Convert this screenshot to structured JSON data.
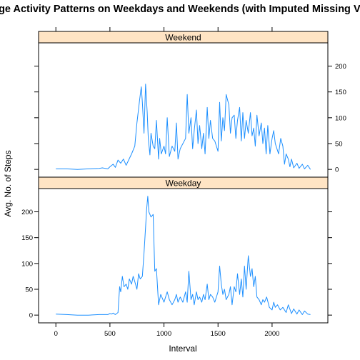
{
  "chart_data": {
    "type": "line",
    "title": "Average Activity Patterns on Weekdays and Weekends (with Imputed Missing Values)",
    "xlabel": "Interval",
    "ylabel": "Avg. No. of Steps",
    "xlim": [
      -160,
      2516
    ],
    "x_ticks": [
      0,
      500,
      1000,
      1500,
      2000
    ],
    "y_ticks": [
      0,
      50,
      100,
      150,
      200
    ],
    "line_color": "#1e90ff",
    "strip_color": "#ffe4c4",
    "grid": false,
    "panels": [
      {
        "name": "Weekend",
        "ylim": [
          -15,
          245
        ],
        "x": [
          0,
          100,
          200,
          300,
          400,
          430,
          480,
          500,
          530,
          550,
          575,
          600,
          625,
          650,
          700,
          730,
          750,
          775,
          790,
          800,
          815,
          830,
          845,
          855,
          870,
          880,
          900,
          915,
          930,
          950,
          960,
          975,
          1000,
          1015,
          1030,
          1050,
          1075,
          1100,
          1115,
          1130,
          1150,
          1200,
          1215,
          1230,
          1250,
          1265,
          1280,
          1300,
          1315,
          1330,
          1350,
          1365,
          1380,
          1400,
          1415,
          1430,
          1450,
          1470,
          1500,
          1515,
          1530,
          1545,
          1560,
          1575,
          1600,
          1615,
          1630,
          1650,
          1665,
          1680,
          1700,
          1715,
          1730,
          1745,
          1760,
          1780,
          1800,
          1815,
          1830,
          1845,
          1860,
          1880,
          1900,
          1915,
          1930,
          1945,
          1960,
          1980,
          2000,
          2015,
          2030,
          2045,
          2060,
          2080,
          2100,
          2115,
          2130,
          2150,
          2165,
          2180,
          2200,
          2230,
          2250,
          2280,
          2300,
          2330,
          2355
        ],
        "y": [
          1,
          1,
          0,
          1,
          2,
          3,
          1,
          5,
          10,
          4,
          18,
          12,
          20,
          8,
          30,
          45,
          90,
          135,
          160,
          130,
          70,
          165,
          110,
          60,
          28,
          70,
          45,
          40,
          95,
          20,
          60,
          30,
          45,
          30,
          100,
          25,
          45,
          35,
          90,
          20,
          40,
          60,
          145,
          70,
          100,
          40,
          75,
          115,
          50,
          85,
          40,
          70,
          30,
          120,
          60,
          95,
          60,
          55,
          35,
          130,
          55,
          100,
          75,
          145,
          125,
          70,
          100,
          105,
          60,
          95,
          120,
          55,
          110,
          60,
          95,
          70,
          110,
          65,
          80,
          45,
          105,
          65,
          90,
          50,
          80,
          30,
          85,
          30,
          60,
          75,
          50,
          40,
          30,
          60,
          45,
          10,
          30,
          20,
          5,
          20,
          3,
          12,
          2,
          10,
          1,
          8,
          0
        ]
      },
      {
        "name": "Weekday",
        "ylim": [
          -15,
          245
        ],
        "x": [
          0,
          100,
          200,
          300,
          400,
          480,
          500,
          515,
          530,
          550,
          575,
          590,
          600,
          615,
          630,
          650,
          665,
          680,
          700,
          715,
          730,
          750,
          765,
          780,
          800,
          815,
          830,
          840,
          850,
          860,
          880,
          900,
          915,
          930,
          950,
          970,
          1000,
          1015,
          1030,
          1050,
          1075,
          1100,
          1115,
          1130,
          1150,
          1175,
          1200,
          1215,
          1230,
          1250,
          1265,
          1280,
          1300,
          1315,
          1330,
          1350,
          1365,
          1380,
          1400,
          1415,
          1430,
          1450,
          1470,
          1500,
          1515,
          1530,
          1545,
          1560,
          1575,
          1600,
          1615,
          1630,
          1650,
          1665,
          1680,
          1700,
          1715,
          1730,
          1745,
          1760,
          1780,
          1800,
          1815,
          1830,
          1845,
          1860,
          1880,
          1900,
          1915,
          1930,
          1950,
          1975,
          2000,
          2015,
          2030,
          2050,
          2075,
          2100,
          2130,
          2150,
          2180,
          2200,
          2230,
          2250,
          2280,
          2300,
          2330,
          2355
        ],
        "y": [
          2,
          1,
          0,
          0,
          1,
          1,
          3,
          2,
          4,
          1,
          5,
          55,
          45,
          75,
          55,
          60,
          50,
          70,
          60,
          75,
          65,
          50,
          80,
          70,
          75,
          120,
          170,
          205,
          230,
          200,
          190,
          195,
          85,
          90,
          20,
          40,
          25,
          35,
          45,
          30,
          20,
          30,
          40,
          25,
          35,
          25,
          45,
          25,
          85,
          30,
          40,
          20,
          45,
          30,
          35,
          25,
          40,
          30,
          60,
          30,
          40,
          35,
          25,
          45,
          95,
          60,
          40,
          50,
          30,
          40,
          55,
          20,
          55,
          45,
          80,
          40,
          70,
          35,
          95,
          50,
          115,
          75,
          90,
          55,
          75,
          35,
          30,
          20,
          30,
          25,
          35,
          15,
          10,
          25,
          15,
          20,
          10,
          15,
          5,
          20,
          3,
          12,
          2,
          10,
          1,
          8,
          2,
          1
        ]
      }
    ]
  }
}
